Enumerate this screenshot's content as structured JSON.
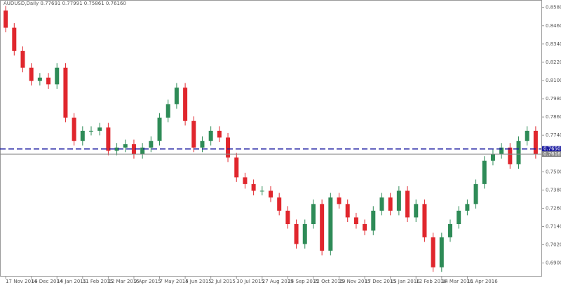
{
  "chart_data": {
    "type": "candlestick",
    "title": "AUDUSD,Daily  0.77691 0.77991 0.75861 0.76160",
    "categories": [
      "17 Nov 2014",
      null,
      null,
      "16 Dec 2014",
      null,
      null,
      "14 Jan 2015",
      null,
      null,
      "11 Feb 2015",
      null,
      null,
      "12 Mar 2015",
      null,
      null,
      "9 Apr 2015",
      null,
      null,
      "7 May 2015",
      null,
      null,
      "4 Jun 2015",
      null,
      null,
      "2 Jul 2015",
      null,
      null,
      "30 Jul 2015",
      null,
      null,
      "27 Aug 2015",
      null,
      null,
      "24 Sep 2015",
      null,
      null,
      "22 Oct 2015",
      null,
      null,
      "19 Nov 2015",
      null,
      null,
      "17 Dec 2015",
      null,
      null,
      "15 Jan 2016",
      null,
      null,
      "12 Feb 2016",
      null,
      null,
      "14 Mar 2016",
      null,
      null,
      "11 Apr 2016",
      null,
      null,
      null,
      null,
      null,
      null,
      null,
      null
    ],
    "open": [
      0.856,
      0.8447,
      0.8294,
      0.8184,
      0.8097,
      0.8119,
      0.8075,
      0.8184,
      0.7856,
      0.7703,
      0.7769,
      0.7769,
      0.7791,
      0.7638,
      0.7659,
      0.7681,
      0.7616,
      0.7659,
      0.7703,
      0.7856,
      0.7944,
      0.8053,
      0.7834,
      0.7659,
      0.7703,
      0.7769,
      0.7725,
      0.7594,
      0.7463,
      0.7419,
      0.7375,
      0.7375,
      0.7331,
      0.7244,
      0.7156,
      0.7025,
      0.7156,
      0.7288,
      0.6981,
      0.7331,
      0.7288,
      0.72,
      0.7156,
      0.7113,
      0.7244,
      0.7331,
      0.7244,
      0.7375,
      0.72,
      0.7288,
      0.7069,
      0.6872,
      0.7069,
      0.7156,
      0.7244,
      0.7288,
      0.7419,
      0.7572,
      0.7616,
      0.7659,
      0.755,
      0.7703,
      0.7769
    ],
    "high": [
      0.859,
      0.8477,
      0.8324,
      0.8214,
      0.8149,
      0.8149,
      0.8214,
      0.8214,
      0.7886,
      0.7799,
      0.7799,
      0.7821,
      0.7821,
      0.7689,
      0.7711,
      0.7711,
      0.7689,
      0.7733,
      0.7886,
      0.7974,
      0.8083,
      0.8083,
      0.7864,
      0.7733,
      0.7799,
      0.7799,
      0.7755,
      0.7624,
      0.7493,
      0.7449,
      0.7405,
      0.7405,
      0.7361,
      0.7274,
      0.7186,
      0.7186,
      0.7318,
      0.7318,
      0.7361,
      0.7361,
      0.7318,
      0.723,
      0.7186,
      0.7274,
      0.7361,
      0.7361,
      0.7405,
      0.7405,
      0.7318,
      0.7318,
      0.7099,
      0.7099,
      0.7186,
      0.7274,
      0.7318,
      0.7449,
      0.7602,
      0.7646,
      0.7689,
      0.7689,
      0.7733,
      0.7799,
      0.7799
    ],
    "low": [
      0.8417,
      0.8264,
      0.8154,
      0.8067,
      0.8067,
      0.8045,
      0.8045,
      0.7826,
      0.7673,
      0.7673,
      0.7739,
      0.7739,
      0.7608,
      0.7608,
      0.7629,
      0.7586,
      0.7586,
      0.7629,
      0.7673,
      0.7826,
      0.7914,
      0.7804,
      0.7629,
      0.7629,
      0.7673,
      0.7695,
      0.7564,
      0.7433,
      0.7389,
      0.7345,
      0.7345,
      0.7301,
      0.7214,
      0.7126,
      0.6995,
      0.6995,
      0.7126,
      0.6951,
      0.6951,
      0.7258,
      0.717,
      0.7126,
      0.7083,
      0.7083,
      0.7214,
      0.7214,
      0.7214,
      0.717,
      0.717,
      0.7039,
      0.6842,
      0.6842,
      0.7039,
      0.7126,
      0.7214,
      0.7258,
      0.7389,
      0.7542,
      0.7586,
      0.752,
      0.752,
      0.7673,
      0.7586
    ],
    "close": [
      0.8447,
      0.8294,
      0.8184,
      0.8097,
      0.8119,
      0.8075,
      0.8184,
      0.7856,
      0.7703,
      0.7769,
      0.7769,
      0.7791,
      0.7638,
      0.7659,
      0.7681,
      0.7616,
      0.7659,
      0.7703,
      0.7856,
      0.7944,
      0.8053,
      0.7834,
      0.7659,
      0.7703,
      0.7769,
      0.7725,
      0.7594,
      0.7463,
      0.7419,
      0.7375,
      0.7375,
      0.7331,
      0.7244,
      0.7156,
      0.7025,
      0.7156,
      0.7288,
      0.6981,
      0.7331,
      0.7288,
      0.72,
      0.7156,
      0.7113,
      0.7244,
      0.7331,
      0.7244,
      0.7375,
      0.72,
      0.7288,
      0.7069,
      0.6872,
      0.7069,
      0.7156,
      0.7244,
      0.7288,
      0.7419,
      0.7572,
      0.7616,
      0.7659,
      0.755,
      0.7703,
      0.7769,
      0.7616
    ],
    "up_color": "#2e8b57",
    "down_color": "#e0262d",
    "ylim": [
      0.682,
      0.862
    ],
    "yticks": [
      {
        "value": 0.69,
        "label": "0.69000"
      },
      {
        "value": 0.702,
        "label": "0.70200"
      },
      {
        "value": 0.714,
        "label": "0.71400"
      },
      {
        "value": 0.726,
        "label": "0.72600"
      },
      {
        "value": 0.738,
        "label": "0.73800"
      },
      {
        "value": 0.75,
        "label": "0.75000"
      },
      {
        "value": 0.762,
        "label": "0.76200"
      },
      {
        "value": 0.774,
        "label": "0.77400"
      },
      {
        "value": 0.786,
        "label": "0.78600"
      },
      {
        "value": 0.798,
        "label": "0.79800"
      },
      {
        "value": 0.81,
        "label": "0.81000"
      },
      {
        "value": 0.822,
        "label": "0.82200"
      },
      {
        "value": 0.834,
        "label": "0.83400"
      },
      {
        "value": 0.846,
        "label": "0.84600"
      },
      {
        "value": 0.858,
        "label": "0.85800"
      }
    ],
    "levels": [
      {
        "value": 0.765,
        "label": "0.76500",
        "color": "#1a1aa0",
        "dashed": true
      },
      {
        "value": 0.7616,
        "label": "0.76160",
        "color": "#888888",
        "dashed": false
      }
    ]
  }
}
